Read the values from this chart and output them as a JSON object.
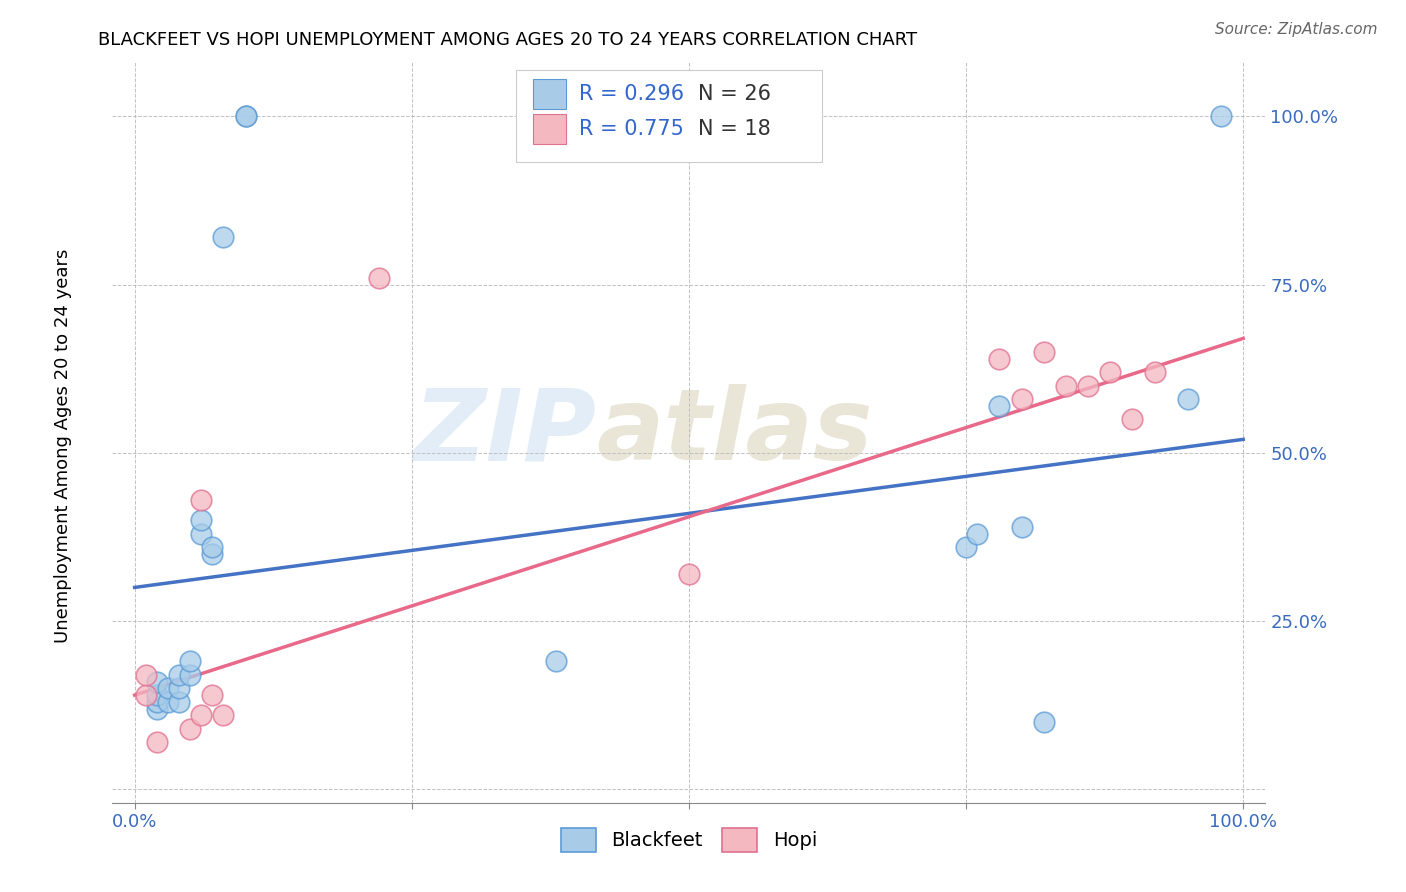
{
  "title": "BLACKFEET VS HOPI UNEMPLOYMENT AMONG AGES 20 TO 24 YEARS CORRELATION CHART",
  "source": "Source: ZipAtlas.com",
  "ylabel": "Unemployment Among Ages 20 to 24 years",
  "xlim": [
    -0.02,
    1.02
  ],
  "ylim": [
    -0.02,
    1.08
  ],
  "xticks": [
    0.0,
    0.25,
    0.5,
    0.75,
    1.0
  ],
  "yticks": [
    0.0,
    0.25,
    0.5,
    0.75,
    1.0
  ],
  "xticklabels": [
    "0.0%",
    "",
    "",
    "",
    "100.0%"
  ],
  "yticklabels": [
    "",
    "25.0%",
    "50.0%",
    "75.0%",
    "100.0%"
  ],
  "watermark_zip": "ZIP",
  "watermark_atlas": "atlas",
  "blue_color": "#a8cce8",
  "blue_edge_color": "#5b9bd5",
  "pink_color": "#f4b8c1",
  "pink_edge_color": "#e07090",
  "blue_line_color": "#4472c4",
  "pink_line_color": "#e8698a",
  "blackfeet_x": [
    0.1,
    0.1,
    0.02,
    0.02,
    0.02,
    0.02,
    0.03,
    0.03,
    0.04,
    0.04,
    0.04,
    0.05,
    0.05,
    0.06,
    0.06,
    0.07,
    0.07,
    0.08,
    0.38,
    0.75,
    0.76,
    0.78,
    0.8,
    0.82,
    0.95,
    0.98
  ],
  "blackfeet_y": [
    1.0,
    1.0,
    0.12,
    0.13,
    0.14,
    0.16,
    0.13,
    0.15,
    0.13,
    0.15,
    0.17,
    0.17,
    0.19,
    0.38,
    0.4,
    0.35,
    0.36,
    0.82,
    0.19,
    0.36,
    0.38,
    0.57,
    0.39,
    0.1,
    0.58,
    1.0
  ],
  "hopi_x": [
    0.01,
    0.01,
    0.02,
    0.05,
    0.06,
    0.06,
    0.07,
    0.08,
    0.22,
    0.5,
    0.78,
    0.8,
    0.82,
    0.84,
    0.86,
    0.88,
    0.9,
    0.92
  ],
  "hopi_y": [
    0.14,
    0.17,
    0.07,
    0.09,
    0.11,
    0.43,
    0.14,
    0.11,
    0.76,
    0.32,
    0.64,
    0.58,
    0.65,
    0.6,
    0.6,
    0.62,
    0.55,
    0.62
  ],
  "blue_trendline_x": [
    0.0,
    1.0
  ],
  "blue_trendline_y": [
    0.3,
    0.52
  ],
  "pink_trendline_x": [
    0.0,
    1.0
  ],
  "pink_trendline_y": [
    0.14,
    0.67
  ],
  "legend_r_color": "#3366cc",
  "legend_n_color": "#333333",
  "legend_fontsize": 15
}
